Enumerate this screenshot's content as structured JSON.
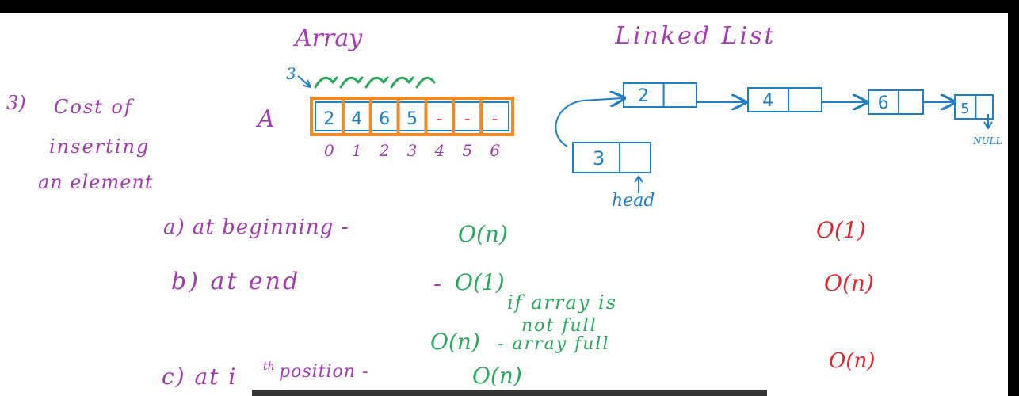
{
  "colors": {
    "purple": "#a23ab0",
    "blue": "#1e7fc7",
    "green": "#27a85a",
    "red": "#e2262b",
    "orange": "#f08a24",
    "caption": "#111111"
  },
  "titles": {
    "array": "Array",
    "linked_list": "Linked List"
  },
  "heading": {
    "number": "3)",
    "line1": "Cost of",
    "line2": "inserting",
    "line3": "an element"
  },
  "array": {
    "name": "A",
    "shift_count": "3",
    "cells": [
      "2",
      "4",
      "6",
      "5",
      "-",
      "-",
      "-"
    ],
    "indices": [
      "0",
      "1",
      "2",
      "3",
      "4",
      "5",
      "6"
    ]
  },
  "linked_list": {
    "nodes": [
      "2",
      "4",
      "6",
      "5"
    ],
    "new_node": "3",
    "null_label": "NULL",
    "head_label": "head"
  },
  "cases": {
    "a_label": "a) at beginning -",
    "a_array": "O(n)",
    "a_list": "O(1)",
    "b_label": "b) at end",
    "b_dash": "-",
    "b_array": "O(1)",
    "b_note1": "if array is",
    "b_note2": "not full",
    "b_array_full": "O(n)",
    "b_full_note": "- array full",
    "b_list": "O(n)",
    "c_label": "c) at i",
    "c_sup": "th",
    "c_label2": "position -",
    "c_array": "O(n)",
    "c_list": "O(n)"
  }
}
